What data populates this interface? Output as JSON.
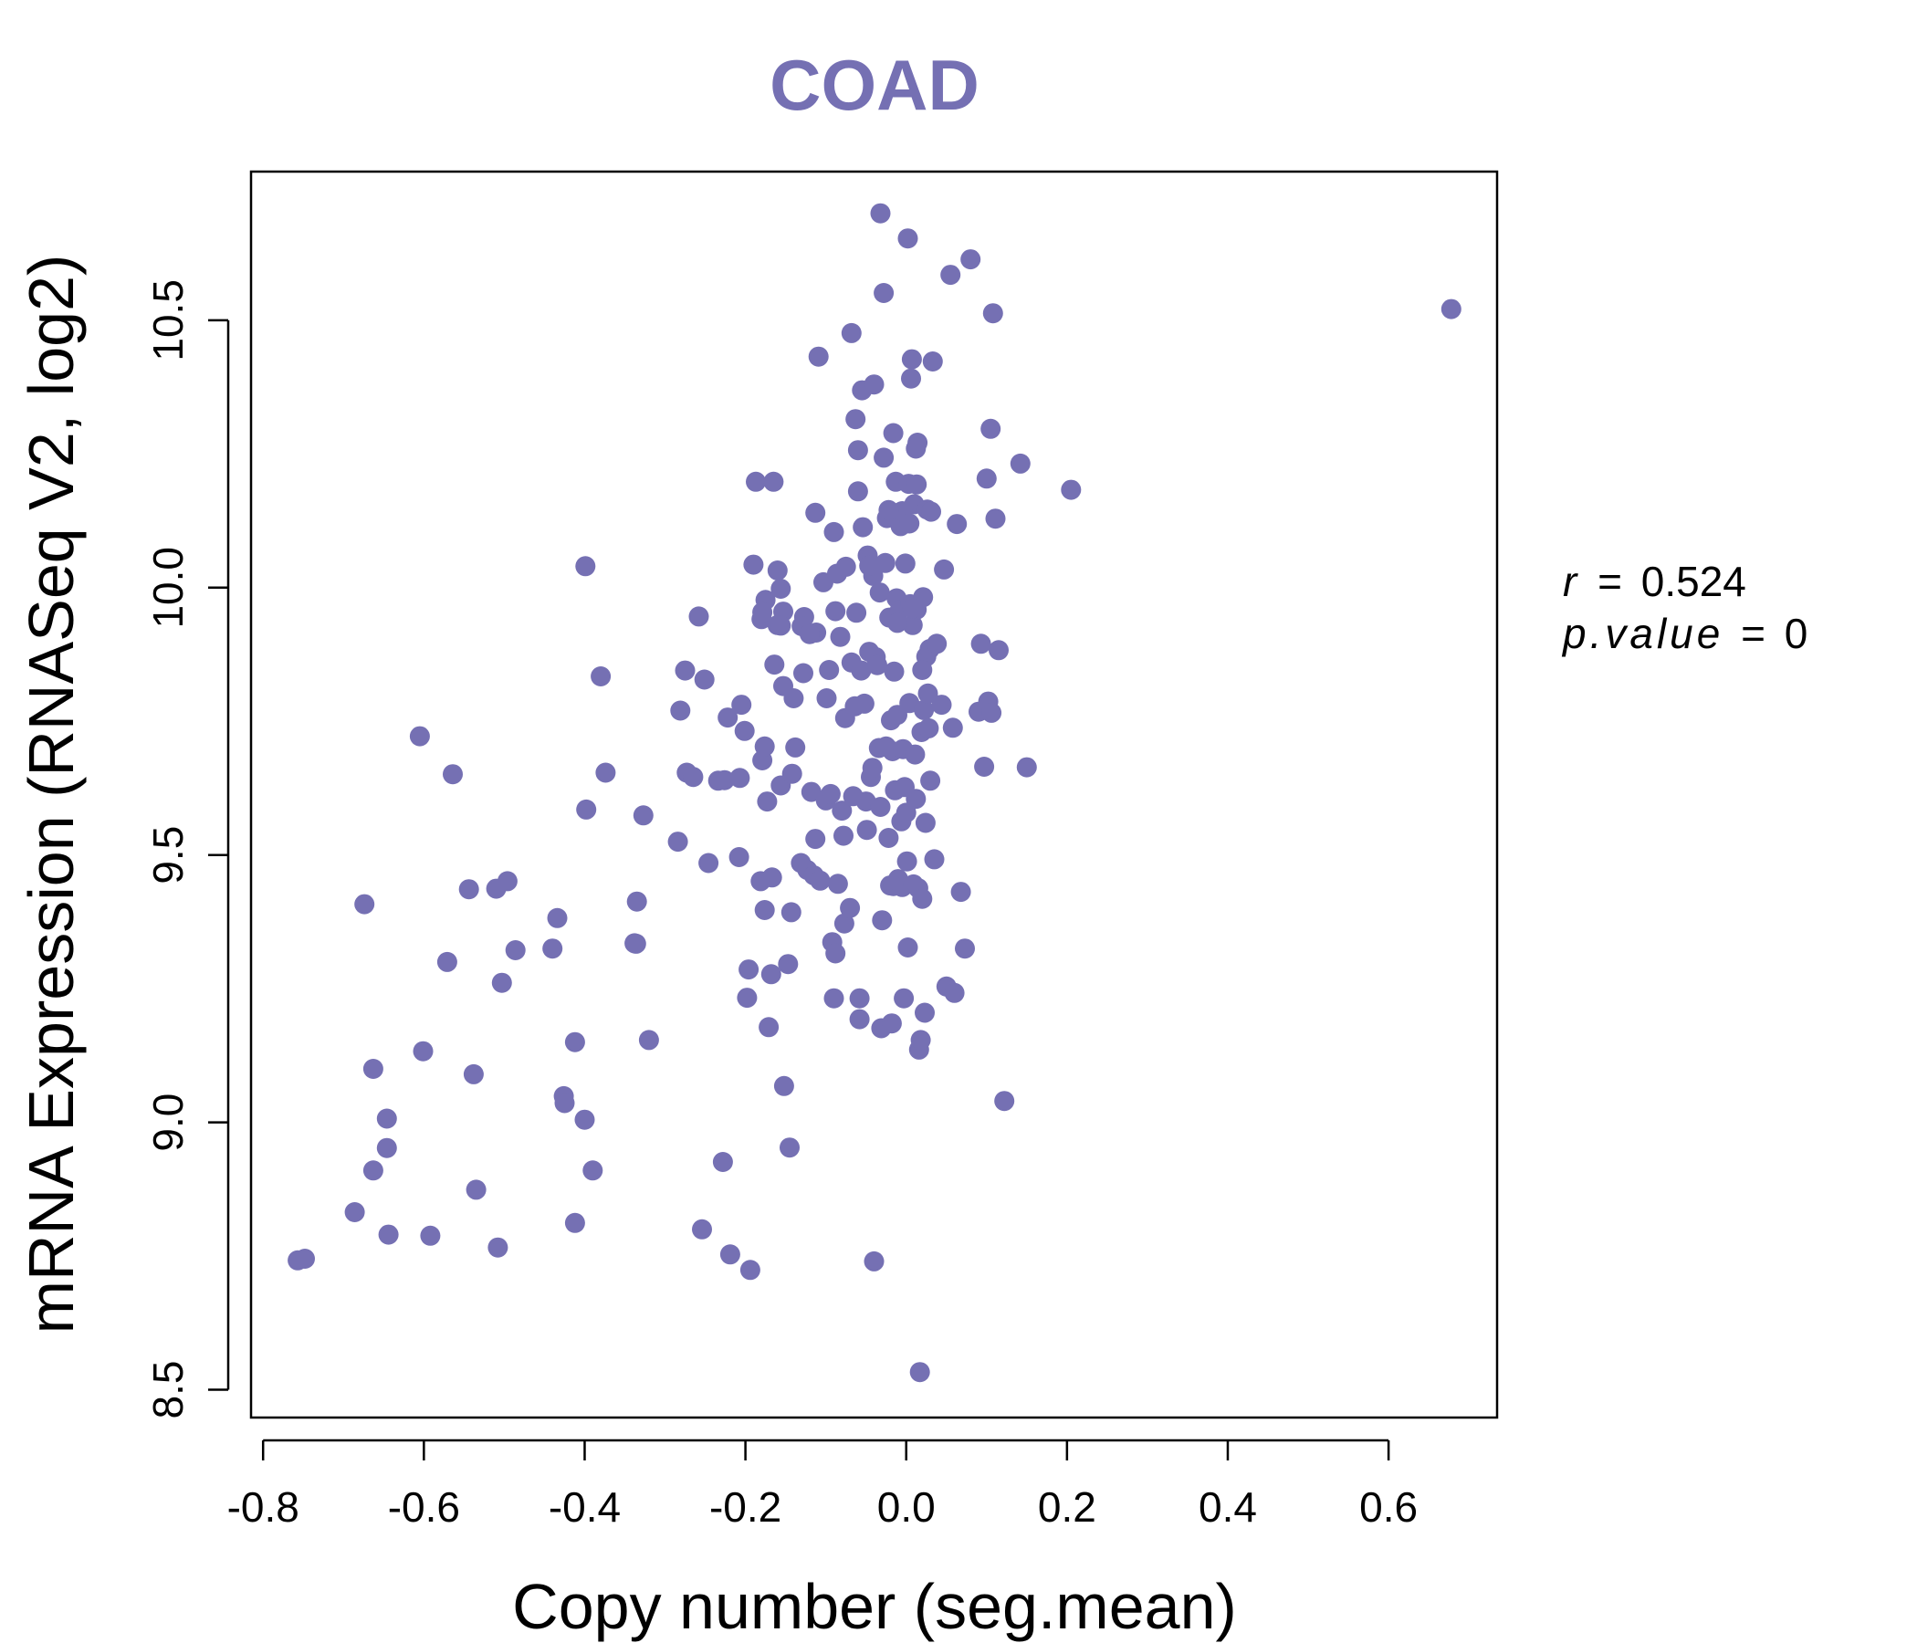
{
  "chart_data": {
    "type": "scatter",
    "title": "COAD",
    "xlabel": "Copy number (seg.mean)",
    "ylabel": "mRNA Expression (RNASeq V2, log2)",
    "xlim": [
      -0.815,
      0.735
    ],
    "ylim": [
      8.448,
      10.778
    ],
    "xticks": [
      -0.8,
      -0.6,
      -0.4,
      -0.2,
      0.0,
      0.2,
      0.4,
      0.6
    ],
    "xtick_labels": [
      "-0.8",
      "-0.6",
      "-0.4",
      "-0.2",
      "0.0",
      "0.2",
      "0.4",
      "0.6"
    ],
    "yticks": [
      8.5,
      9.0,
      9.5,
      10.0,
      10.5
    ],
    "ytick_labels": [
      "8.5",
      "9.0",
      "9.5",
      "10.0",
      "10.5"
    ],
    "grid": false,
    "point_color": "#7570b3",
    "title_color": "#7570b3",
    "annotation": {
      "r_label": "r",
      "r_value": "0.524",
      "p_label": "p.value",
      "p_value": "0",
      "eq": "="
    },
    "points": [
      [
        -0.757,
        8.742
      ],
      [
        -0.748,
        8.745
      ],
      [
        -0.686,
        8.832
      ],
      [
        -0.644,
        8.79
      ],
      [
        -0.663,
        8.91
      ],
      [
        -0.646,
        8.952
      ],
      [
        -0.646,
        9.007
      ],
      [
        -0.663,
        9.1
      ],
      [
        -0.601,
        9.133
      ],
      [
        -0.592,
        8.788
      ],
      [
        -0.538,
        9.09
      ],
      [
        -0.535,
        8.874
      ],
      [
        -0.508,
        8.766
      ],
      [
        -0.571,
        9.3
      ],
      [
        -0.503,
        9.261
      ],
      [
        -0.486,
        9.322
      ],
      [
        -0.544,
        9.436
      ],
      [
        -0.51,
        9.437
      ],
      [
        -0.496,
        9.451
      ],
      [
        -0.674,
        9.408
      ],
      [
        -0.605,
        9.722
      ],
      [
        -0.564,
        9.651
      ],
      [
        -0.44,
        9.325
      ],
      [
        -0.434,
        9.382
      ],
      [
        -0.426,
        9.049
      ],
      [
        -0.425,
        9.036
      ],
      [
        -0.412,
        9.15
      ],
      [
        -0.412,
        8.812
      ],
      [
        -0.4,
        9.005
      ],
      [
        -0.39,
        8.91
      ],
      [
        -0.398,
        9.585
      ],
      [
        -0.399,
        10.04
      ],
      [
        -0.38,
        9.834
      ],
      [
        -0.374,
        9.654
      ],
      [
        -0.336,
        9.334
      ],
      [
        -0.338,
        9.335
      ],
      [
        -0.335,
        9.413
      ],
      [
        -0.327,
        9.574
      ],
      [
        -0.32,
        9.154
      ],
      [
        -0.284,
        9.525
      ],
      [
        -0.281,
        9.77
      ],
      [
        -0.275,
        9.845
      ],
      [
        -0.273,
        9.654
      ],
      [
        -0.265,
        9.646
      ],
      [
        -0.258,
        9.946
      ],
      [
        -0.251,
        9.828
      ],
      [
        -0.246,
        9.485
      ],
      [
        -0.234,
        9.639
      ],
      [
        -0.226,
        9.64
      ],
      [
        -0.228,
        8.926
      ],
      [
        -0.222,
        9.757
      ],
      [
        -0.219,
        8.753
      ],
      [
        -0.254,
        8.8
      ],
      [
        -0.208,
        9.496
      ],
      [
        -0.207,
        9.644
      ],
      [
        -0.205,
        9.781
      ],
      [
        -0.198,
        9.233
      ],
      [
        -0.196,
        9.286
      ],
      [
        -0.194,
        8.724
      ],
      [
        -0.201,
        9.732
      ],
      [
        -0.19,
        10.043
      ],
      [
        -0.187,
        10.198
      ],
      [
        -0.181,
        9.451
      ],
      [
        -0.18,
        9.941
      ],
      [
        -0.179,
        9.677
      ],
      [
        -0.176,
        9.703
      ],
      [
        -0.175,
        9.977
      ],
      [
        -0.173,
        9.6
      ],
      [
        -0.171,
        9.178
      ],
      [
        -0.176,
        9.397
      ],
      [
        -0.168,
        9.277
      ],
      [
        -0.167,
        9.458
      ],
      [
        -0.164,
        9.856
      ],
      [
        -0.16,
        9.93
      ],
      [
        -0.156,
        9.63
      ],
      [
        -0.153,
        9.816
      ],
      [
        -0.152,
        9.068
      ],
      [
        -0.147,
        9.296
      ],
      [
        -0.145,
        8.953
      ],
      [
        -0.143,
        9.393
      ],
      [
        -0.14,
        9.793
      ],
      [
        -0.142,
        9.652
      ],
      [
        -0.138,
        9.701
      ],
      [
        -0.165,
        10.198
      ],
      [
        -0.16,
        10.032
      ],
      [
        -0.156,
        9.998
      ],
      [
        -0.153,
        9.955
      ],
      [
        -0.131,
        9.485
      ],
      [
        -0.128,
        9.84
      ],
      [
        -0.127,
        9.945
      ],
      [
        -0.13,
        9.928
      ],
      [
        -0.123,
        9.472
      ],
      [
        -0.118,
        9.618
      ],
      [
        -0.115,
        9.462
      ],
      [
        -0.112,
        9.916
      ],
      [
        -0.113,
        9.53
      ],
      [
        -0.107,
        9.452
      ],
      [
        -0.103,
        10.01
      ],
      [
        -0.1,
        9.602
      ],
      [
        -0.099,
        9.793
      ],
      [
        -0.096,
        9.846
      ],
      [
        -0.094,
        9.614
      ],
      [
        -0.092,
        9.337
      ],
      [
        -0.09,
        9.232
      ],
      [
        -0.088,
        9.316
      ],
      [
        -0.086,
        10.026
      ],
      [
        -0.085,
        9.446
      ],
      [
        -0.082,
        9.908
      ],
      [
        -0.08,
        9.583
      ],
      [
        -0.078,
        9.536
      ],
      [
        -0.077,
        9.372
      ],
      [
        -0.076,
        9.756
      ],
      [
        -0.075,
        10.039
      ],
      [
        -0.07,
        9.401
      ],
      [
        -0.068,
        9.86
      ],
      [
        -0.066,
        9.61
      ],
      [
        -0.064,
        9.778
      ],
      [
        -0.062,
        9.953
      ],
      [
        -0.06,
        10.18
      ],
      [
        -0.058,
        9.232
      ],
      [
        -0.058,
        9.193
      ],
      [
        -0.056,
        9.845
      ],
      [
        -0.054,
        10.113
      ],
      [
        -0.052,
        9.783
      ],
      [
        -0.05,
        9.6
      ],
      [
        -0.049,
        9.547
      ],
      [
        -0.048,
        10.06
      ],
      [
        -0.046,
        9.88
      ],
      [
        -0.044,
        9.646
      ],
      [
        -0.042,
        9.663
      ],
      [
        -0.041,
        10.022
      ],
      [
        -0.04,
        8.74
      ],
      [
        -0.038,
        9.87
      ],
      [
        -0.036,
        9.855
      ],
      [
        -0.034,
        9.7
      ],
      [
        -0.032,
        9.59
      ],
      [
        -0.031,
        9.176
      ],
      [
        -0.03,
        9.378
      ],
      [
        -0.028,
        10.243
      ],
      [
        -0.026,
        10.046
      ],
      [
        -0.025,
        9.703
      ],
      [
        -0.024,
        10.13
      ],
      [
        -0.022,
        9.532
      ],
      [
        -0.021,
        9.944
      ],
      [
        -0.02,
        9.443
      ],
      [
        -0.019,
        9.752
      ],
      [
        -0.018,
        9.185
      ],
      [
        -0.017,
        9.694
      ],
      [
        -0.016,
        9.442
      ],
      [
        -0.015,
        9.843
      ],
      [
        -0.014,
        9.621
      ],
      [
        -0.013,
        10.198
      ],
      [
        -0.012,
        9.98
      ],
      [
        -0.011,
        9.762
      ],
      [
        -0.01,
        9.455
      ],
      [
        -0.009,
        10.14
      ],
      [
        -0.008,
        9.958
      ],
      [
        -0.007,
        10.115
      ],
      [
        -0.006,
        9.563
      ],
      [
        -0.005,
        9.44
      ],
      [
        -0.004,
        9.698
      ],
      [
        -0.003,
        9.232
      ],
      [
        -0.002,
        9.627
      ],
      [
        -0.001,
        10.045
      ],
      [
        0.0,
        9.579
      ],
      [
        0.001,
        9.488
      ],
      [
        0.002,
        9.327
      ],
      [
        0.003,
        10.194
      ],
      [
        0.004,
        9.784
      ],
      [
        0.005,
        9.969
      ],
      [
        0.006,
        10.391
      ],
      [
        0.007,
        10.427
      ],
      [
        0.008,
        9.93
      ],
      [
        0.009,
        9.445
      ],
      [
        0.01,
        10.156
      ],
      [
        0.011,
        9.688
      ],
      [
        0.012,
        9.605
      ],
      [
        0.013,
        9.959
      ],
      [
        0.014,
        10.271
      ],
      [
        0.015,
        9.438
      ],
      [
        0.016,
        9.136
      ],
      [
        0.017,
        8.533
      ],
      [
        0.018,
        9.154
      ],
      [
        0.019,
        9.73
      ],
      [
        0.02,
        9.418
      ],
      [
        0.021,
        9.982
      ],
      [
        0.022,
        9.771
      ],
      [
        0.023,
        9.205
      ],
      [
        0.024,
        9.56
      ],
      [
        0.025,
        9.871
      ],
      [
        0.026,
        10.146
      ],
      [
        0.027,
        9.802
      ],
      [
        0.028,
        9.737
      ],
      [
        0.029,
        9.885
      ],
      [
        0.03,
        9.639
      ],
      [
        0.031,
        10.142
      ],
      [
        0.033,
        10.423
      ],
      [
        0.035,
        9.492
      ],
      [
        0.038,
        9.895
      ],
      [
        0.044,
        9.781
      ],
      [
        0.047,
        10.034
      ],
      [
        0.05,
        9.254
      ],
      [
        0.055,
        10.585
      ],
      [
        0.058,
        9.738
      ],
      [
        0.06,
        9.242
      ],
      [
        0.063,
        10.119
      ],
      [
        0.068,
        9.431
      ],
      [
        0.073,
        9.325
      ],
      [
        0.08,
        10.614
      ],
      [
        0.09,
        9.768
      ],
      [
        0.093,
        9.895
      ],
      [
        0.097,
        9.665
      ],
      [
        0.1,
        10.204
      ],
      [
        0.102,
        9.787
      ],
      [
        0.105,
        10.297
      ],
      [
        0.106,
        9.766
      ],
      [
        0.108,
        10.513
      ],
      [
        0.111,
        10.129
      ],
      [
        0.115,
        9.883
      ],
      [
        0.122,
        9.04
      ],
      [
        0.142,
        10.232
      ],
      [
        0.15,
        9.664
      ],
      [
        0.205,
        10.183
      ],
      [
        0.678,
        10.521
      ],
      [
        -0.032,
        10.7
      ],
      [
        0.002,
        10.653
      ],
      [
        -0.028,
        10.551
      ],
      [
        -0.055,
        10.369
      ],
      [
        -0.063,
        10.315
      ],
      [
        -0.09,
        10.104
      ],
      [
        -0.113,
        10.14
      ],
      [
        -0.06,
        10.257
      ],
      [
        -0.068,
        10.476
      ],
      [
        -0.109,
        10.432
      ],
      [
        -0.04,
        10.38
      ],
      [
        -0.016,
        10.289
      ],
      [
        0.012,
        10.26
      ],
      [
        0.013,
        10.193
      ],
      [
        -0.005,
        10.143
      ],
      [
        0.004,
        10.12
      ],
      [
        -0.033,
        9.991
      ],
      [
        -0.046,
        10.041
      ],
      [
        -0.088,
        9.956
      ],
      [
        -0.12,
        9.913
      ],
      [
        -0.156,
        9.929
      ],
      [
        -0.179,
        9.954
      ],
      [
        -0.011,
        9.934
      ],
      [
        0.008,
        9.961
      ],
      [
        0.02,
        9.846
      ],
      [
        -0.022,
        10.145
      ]
    ]
  }
}
